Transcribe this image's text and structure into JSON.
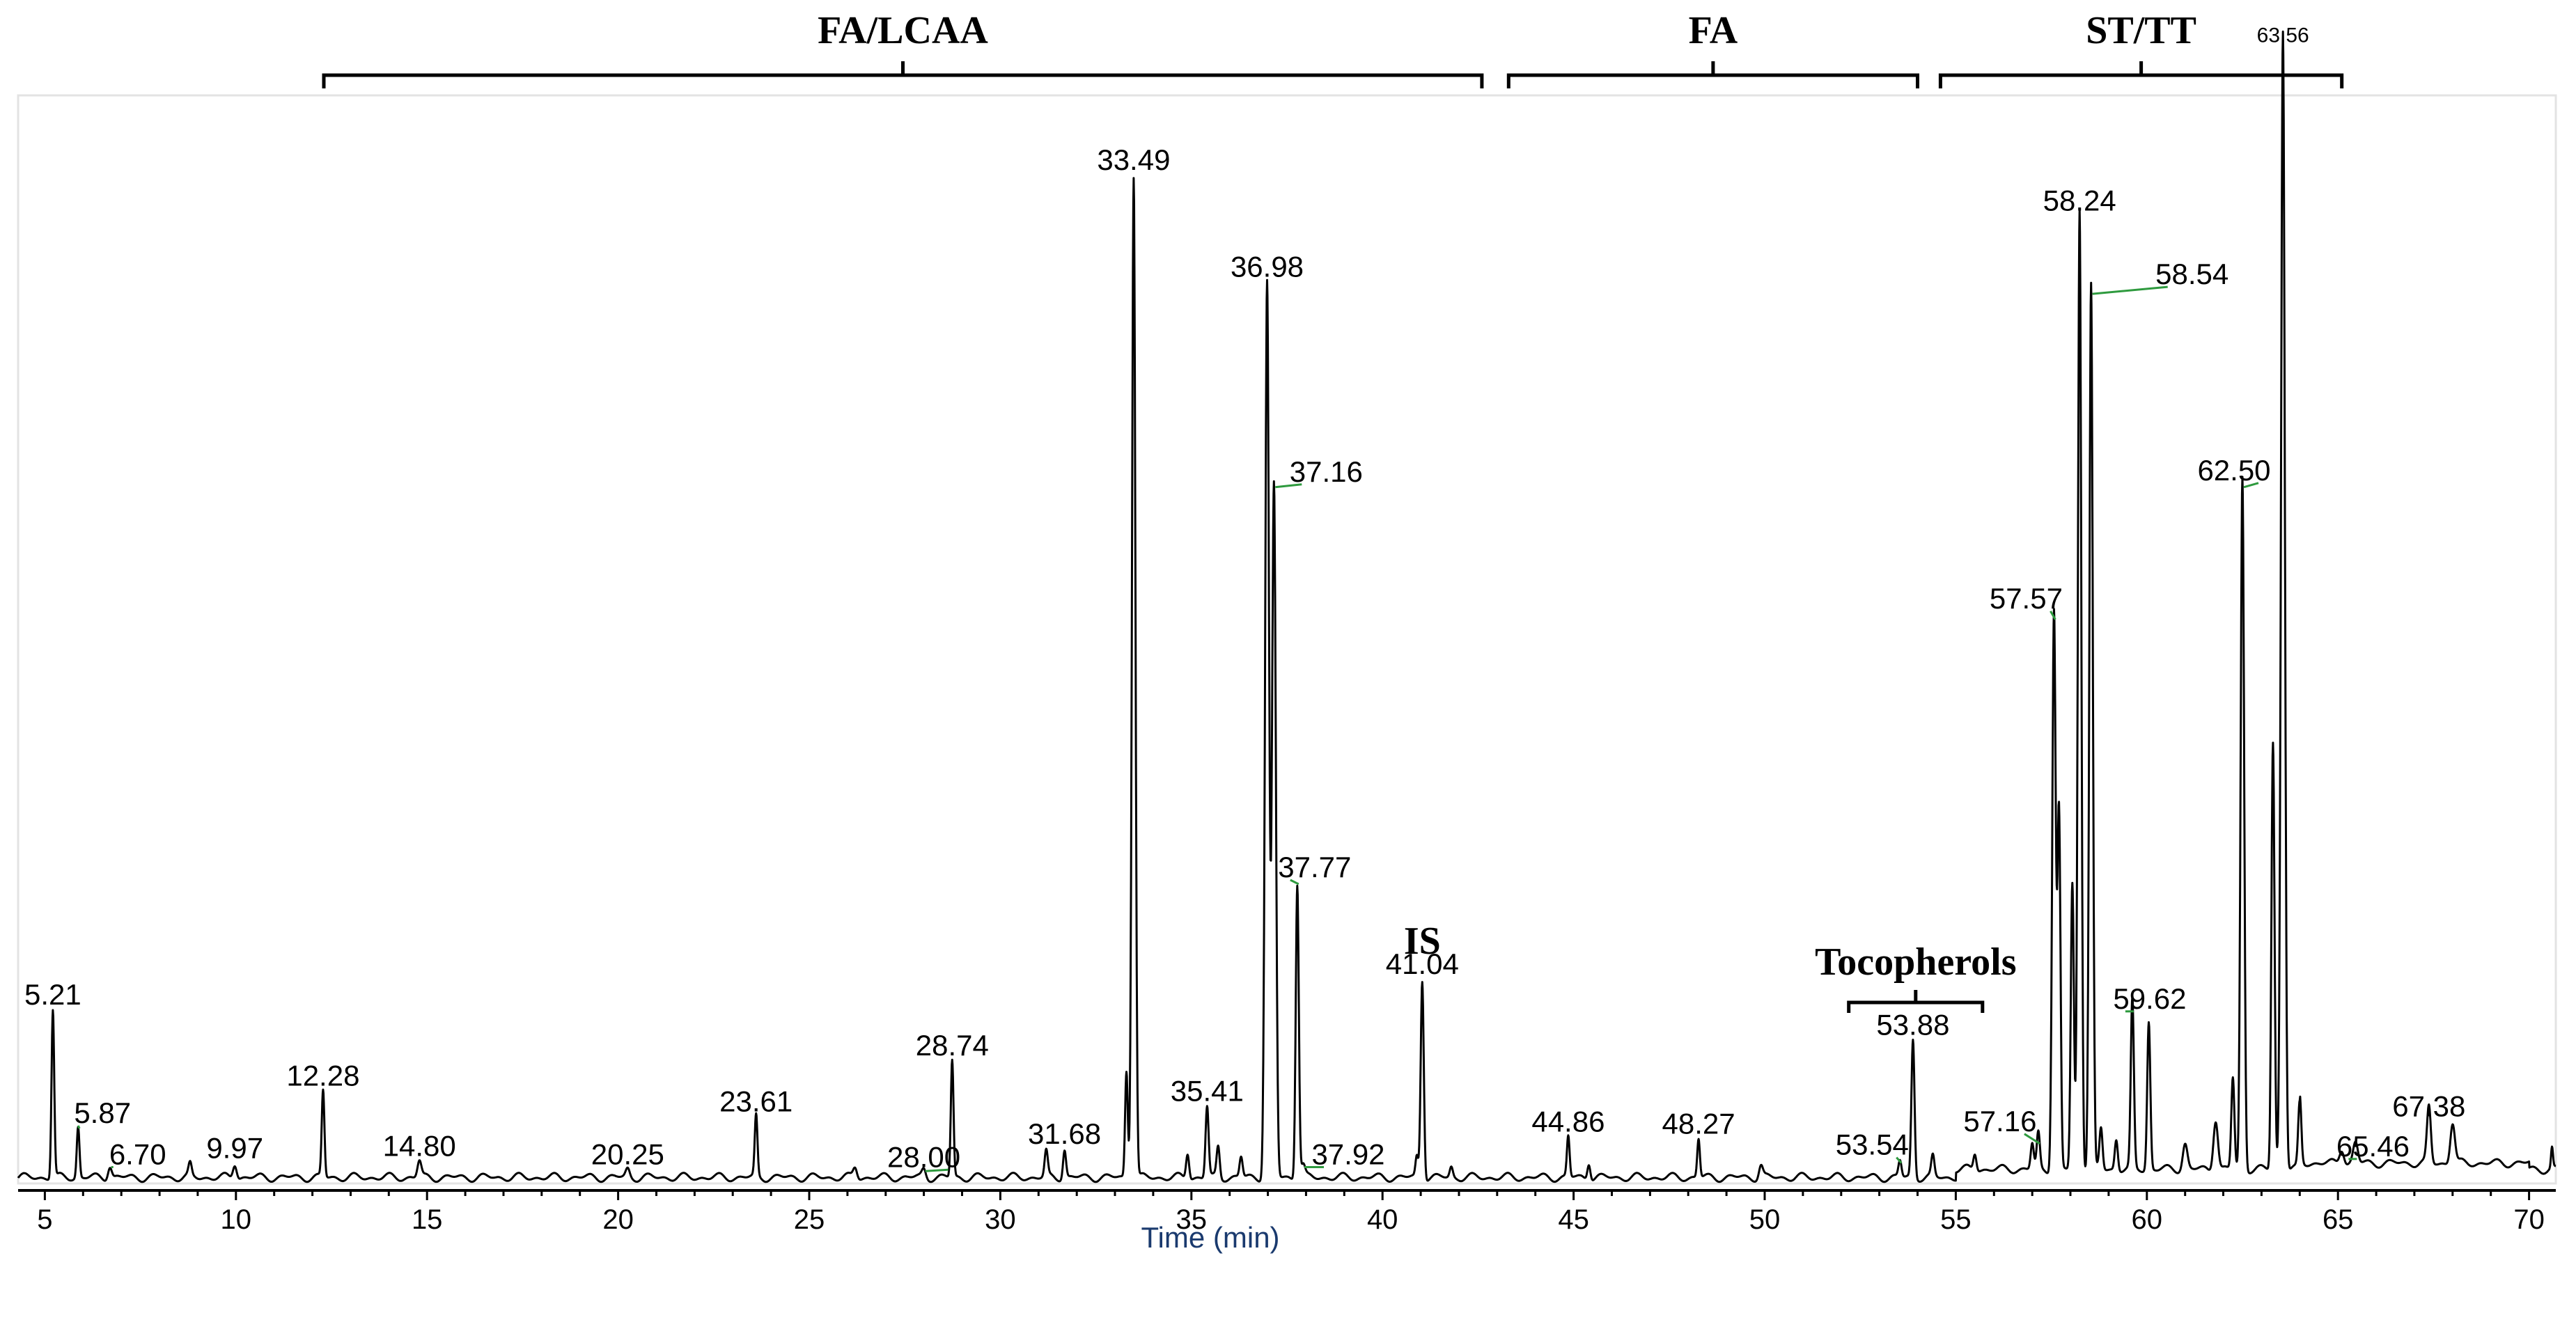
{
  "chart_data": {
    "type": "line",
    "title": "",
    "xlabel": "Time (min)",
    "ylabel": "",
    "xlim": [
      4.3,
      70.7
    ],
    "ylim": [
      0,
      100
    ],
    "x_ticks": [
      5,
      10,
      15,
      20,
      25,
      30,
      35,
      40,
      45,
      50,
      55,
      60,
      65,
      70
    ],
    "x_tick_labels": [
      "5",
      "10",
      "15",
      "20",
      "25",
      "30",
      "35",
      "40",
      "45",
      "50",
      "55",
      "60",
      "65",
      "70"
    ],
    "grid": false,
    "peaks": [
      {
        "rt": 5.21,
        "label": "5.21",
        "height": 16.5,
        "width": 0.07
      },
      {
        "rt": 5.87,
        "label": "5.87",
        "height": 5.0,
        "width": 0.07
      },
      {
        "rt": 6.7,
        "label": "6.70",
        "height": 1.2,
        "width": 0.1
      },
      {
        "rt": 9.97,
        "label": "9.97",
        "height": 1.4,
        "width": 0.1
      },
      {
        "rt": 12.28,
        "label": "12.28",
        "height": 8.5,
        "width": 0.07
      },
      {
        "rt": 14.8,
        "label": "14.80",
        "height": 1.6,
        "width": 0.1
      },
      {
        "rt": 20.25,
        "label": "20.25",
        "height": 0.8,
        "width": 0.1
      },
      {
        "rt": 23.61,
        "label": "23.61",
        "height": 6.0,
        "width": 0.07
      },
      {
        "rt": 28.0,
        "label": "28.00",
        "height": 0.8,
        "width": 0.1
      },
      {
        "rt": 28.74,
        "label": "28.74",
        "height": 11.5,
        "width": 0.07
      },
      {
        "rt": 31.68,
        "label": "31.68",
        "height": 2.8,
        "width": 0.08
      },
      {
        "rt": 33.49,
        "label": "33.49",
        "height": 98.5,
        "width": 0.09
      },
      {
        "rt": 35.41,
        "label": "35.41",
        "height": 7.0,
        "width": 0.08
      },
      {
        "rt": 36.98,
        "label": "36.98",
        "height": 88.0,
        "width": 0.1
      },
      {
        "rt": 37.16,
        "label": "37.16",
        "height": 68.0,
        "width": 0.1
      },
      {
        "rt": 37.77,
        "label": "37.77",
        "height": 29.0,
        "width": 0.08
      },
      {
        "rt": 37.92,
        "label": "37.92",
        "height": 1.2,
        "width": 0.1
      },
      {
        "rt": 41.04,
        "label": "41.04",
        "height": 19.5,
        "width": 0.08
      },
      {
        "rt": 44.86,
        "label": "44.86",
        "height": 4.0,
        "width": 0.07
      },
      {
        "rt": 48.27,
        "label": "48.27",
        "height": 3.8,
        "width": 0.07
      },
      {
        "rt": 53.54,
        "label": "53.54",
        "height": 1.6,
        "width": 0.08
      },
      {
        "rt": 53.88,
        "label": "53.88",
        "height": 13.5,
        "width": 0.08
      },
      {
        "rt": 57.16,
        "label": "57.16",
        "height": 3.5,
        "width": 0.08
      },
      {
        "rt": 57.57,
        "label": "57.57",
        "height": 55.0,
        "width": 0.09
      },
      {
        "rt": 58.24,
        "label": "58.24",
        "height": 94.5,
        "width": 0.09
      },
      {
        "rt": 58.54,
        "label": "58.54",
        "height": 87.0,
        "width": 0.09
      },
      {
        "rt": 59.62,
        "label": "59.62",
        "height": 16.5,
        "width": 0.08
      },
      {
        "rt": 62.5,
        "label": "62.50",
        "height": 68.0,
        "width": 0.09
      },
      {
        "rt": 63.56,
        "label": "63.56",
        "height": 112.0,
        "width": 0.1
      },
      {
        "rt": 65.46,
        "label": "65.46",
        "height": 2.0,
        "width": 0.12
      },
      {
        "rt": 67.38,
        "label": "67.38",
        "height": 5.5,
        "width": 0.1
      }
    ],
    "unlabeled_peaks": [
      {
        "rt": 8.8,
        "height": 1.2,
        "width": 0.08
      },
      {
        "rt": 26.2,
        "height": 1.0,
        "width": 0.1
      },
      {
        "rt": 31.2,
        "height": 2.5,
        "width": 0.08
      },
      {
        "rt": 33.3,
        "height": 10.5,
        "width": 0.07
      },
      {
        "rt": 34.9,
        "height": 2.5,
        "width": 0.08
      },
      {
        "rt": 35.7,
        "height": 3.0,
        "width": 0.08
      },
      {
        "rt": 36.3,
        "height": 2.0,
        "width": 0.08
      },
      {
        "rt": 40.9,
        "height": 2.0,
        "width": 0.07
      },
      {
        "rt": 41.8,
        "height": 1.0,
        "width": 0.08
      },
      {
        "rt": 45.4,
        "height": 1.6,
        "width": 0.08
      },
      {
        "rt": 49.9,
        "height": 1.2,
        "width": 0.1
      },
      {
        "rt": 54.4,
        "height": 2.0,
        "width": 0.08
      },
      {
        "rt": 55.5,
        "height": 1.6,
        "width": 0.08
      },
      {
        "rt": 57.0,
        "height": 2.5,
        "width": 0.08
      },
      {
        "rt": 57.7,
        "height": 35.0,
        "width": 0.08
      },
      {
        "rt": 58.05,
        "height": 28.0,
        "width": 0.08
      },
      {
        "rt": 58.8,
        "height": 4.0,
        "width": 0.08
      },
      {
        "rt": 59.2,
        "height": 3.0,
        "width": 0.08
      },
      {
        "rt": 60.05,
        "height": 14.5,
        "width": 0.08
      },
      {
        "rt": 61.0,
        "height": 2.5,
        "width": 0.12
      },
      {
        "rt": 61.8,
        "height": 5.0,
        "width": 0.12
      },
      {
        "rt": 62.25,
        "height": 9.0,
        "width": 0.08
      },
      {
        "rt": 63.3,
        "height": 42.0,
        "width": 0.08
      },
      {
        "rt": 64.0,
        "height": 6.5,
        "width": 0.08
      },
      {
        "rt": 65.1,
        "height": 1.5,
        "width": 0.12
      },
      {
        "rt": 68.0,
        "height": 4.0,
        "width": 0.12
      },
      {
        "rt": 70.6,
        "height": 2.0,
        "width": 0.05
      }
    ],
    "group_brackets": [
      {
        "label": "FA/LCAA",
        "x_start": 12.3,
        "x_end": 42.6
      },
      {
        "label": "FA",
        "x_start": 43.3,
        "x_end": 54.0
      },
      {
        "label": "ST/TT",
        "x_start": 54.6,
        "x_end": 65.1
      }
    ],
    "annotations": [
      {
        "label": "IS",
        "x": 41.04
      },
      {
        "label": "Tocopherols",
        "x_start": 52.2,
        "x_end": 55.7
      }
    ]
  }
}
